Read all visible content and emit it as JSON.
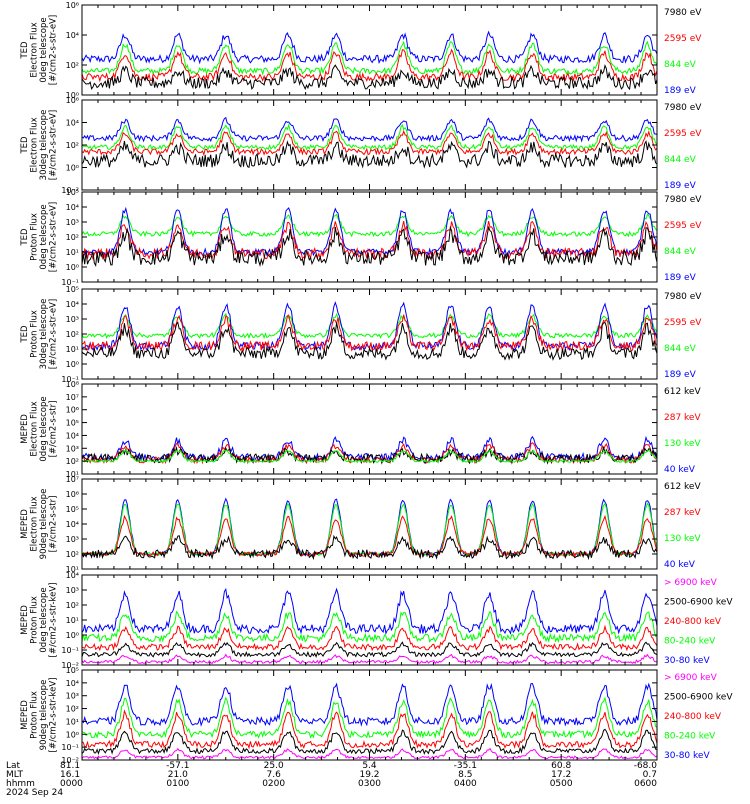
{
  "footer": {
    "row_labels": [
      "Lat",
      "MLT",
      "hhmm"
    ],
    "date": "2024 Sep 24",
    "ticks": [
      {
        "lat": "81.1",
        "mlt": "16.1",
        "time": "0000"
      },
      {
        "lat": "-57.1",
        "mlt": "21.0",
        "time": "0100"
      },
      {
        "lat": "25.0",
        "mlt": "7.6",
        "time": "0200"
      },
      {
        "lat": "5.4",
        "mlt": "19.2",
        "time": "0300"
      },
      {
        "lat": "-35.1",
        "mlt": "8.5",
        "time": "0400"
      },
      {
        "lat": "60.8",
        "mlt": "17.2",
        "time": "0500"
      },
      {
        "lat": "-68.0",
        "mlt": "0.7",
        "time": "0600"
      }
    ]
  },
  "colors": {
    "blue": "#0000ff",
    "red": "#ff0000",
    "green": "#00ff00",
    "black": "#000000",
    "magenta": "#ff00ff"
  },
  "chart_data": [
    {
      "type": "line",
      "ylabel": [
        "TED",
        "Electron Flux",
        "0deg telescope",
        "[#/cm2-s-str-eV]"
      ],
      "ylim_exp": [
        0,
        6
      ],
      "yticks": [
        "10⁰",
        "10²",
        "10⁴",
        "10⁶"
      ],
      "xlim_hours": [
        0,
        6
      ],
      "legend": [
        {
          "label": "7980 eV",
          "color": "#000000"
        },
        {
          "label": "2595 eV",
          "color": "#ff0000"
        },
        {
          "label": "844 eV",
          "color": "#00ff00"
        },
        {
          "label": "189 eV",
          "color": "#0000ff"
        }
      ],
      "series": [
        {
          "color": "#0000ff",
          "base": 2.4,
          "peak": 4.0,
          "noise": 0.25
        },
        {
          "color": "#00ff00",
          "base": 1.6,
          "peak": 3.4,
          "noise": 0.2
        },
        {
          "color": "#ff0000",
          "base": 1.2,
          "peak": 2.8,
          "noise": 0.25
        },
        {
          "color": "#000000",
          "base": 0.8,
          "peak": 1.6,
          "noise": 0.4
        }
      ]
    },
    {
      "type": "line",
      "ylabel": [
        "TED",
        "Electron Flux",
        "30deg telescope",
        "[#/cm2-s-str-eV]"
      ],
      "ylim_exp": [
        -2,
        6
      ],
      "yticks": [
        "10⁻²",
        "10⁰",
        "10²",
        "10⁴",
        "10⁶"
      ],
      "xlim_hours": [
        0,
        6
      ],
      "legend": [
        {
          "label": "7980 eV",
          "color": "#000000"
        },
        {
          "label": "2595 eV",
          "color": "#ff0000"
        },
        {
          "label": "844 eV",
          "color": "#00ff00"
        },
        {
          "label": "189 eV",
          "color": "#0000ff"
        }
      ],
      "series": [
        {
          "color": "#0000ff",
          "base": 2.6,
          "peak": 4.2,
          "noise": 0.25
        },
        {
          "color": "#00ff00",
          "base": 1.8,
          "peak": 3.6,
          "noise": 0.2
        },
        {
          "color": "#ff0000",
          "base": 1.4,
          "peak": 3.0,
          "noise": 0.25
        },
        {
          "color": "#000000",
          "base": 0.6,
          "peak": 1.8,
          "noise": 0.6
        }
      ]
    },
    {
      "type": "line",
      "ylabel": [
        "TED",
        "Proton Flux",
        "0deg telescope",
        "[#/cm2-s-str-eV]"
      ],
      "ylim_exp": [
        -1,
        5
      ],
      "yticks": [
        "10⁻¹",
        "10⁰",
        "10¹",
        "10²",
        "10³",
        "10⁴",
        "10⁵"
      ],
      "xlim_hours": [
        0,
        6
      ],
      "legend": [
        {
          "label": "7980 eV",
          "color": "#000000"
        },
        {
          "label": "2595 eV",
          "color": "#ff0000"
        },
        {
          "label": "844 eV",
          "color": "#00ff00"
        },
        {
          "label": "189 eV",
          "color": "#0000ff"
        }
      ],
      "series": [
        {
          "color": "#00ff00",
          "base": 2.2,
          "peak": 3.4,
          "noise": 0.15
        },
        {
          "color": "#0000ff",
          "base": 1.0,
          "peak": 3.8,
          "noise": 0.2
        },
        {
          "color": "#ff0000",
          "base": 0.9,
          "peak": 2.8,
          "noise": 0.35
        },
        {
          "color": "#000000",
          "base": 0.6,
          "peak": 2.2,
          "noise": 0.5
        }
      ]
    },
    {
      "type": "line",
      "ylabel": [
        "TED",
        "Proton Flux",
        "30deg telescope",
        "[#/cm2-s-str-eV]"
      ],
      "ylim_exp": [
        -1,
        5
      ],
      "yticks": [
        "10⁻¹",
        "10⁰",
        "10¹",
        "10²",
        "10³",
        "10⁴",
        "10⁵"
      ],
      "xlim_hours": [
        0,
        6
      ],
      "legend": [
        {
          "label": "7980 eV",
          "color": "#000000"
        },
        {
          "label": "2595 eV",
          "color": "#ff0000"
        },
        {
          "label": "844 eV",
          "color": "#00ff00"
        },
        {
          "label": "189 eV",
          "color": "#0000ff"
        }
      ],
      "series": [
        {
          "color": "#00ff00",
          "base": 1.9,
          "peak": 3.2,
          "noise": 0.15
        },
        {
          "color": "#0000ff",
          "base": 1.2,
          "peak": 3.9,
          "noise": 0.25
        },
        {
          "color": "#ff0000",
          "base": 1.2,
          "peak": 3.0,
          "noise": 0.3
        },
        {
          "color": "#000000",
          "base": 0.7,
          "peak": 2.4,
          "noise": 0.4
        }
      ]
    },
    {
      "type": "line",
      "ylabel": [
        "MEPED",
        "Electron Flux",
        "0deg telescope",
        "[#/cm2-s-str]"
      ],
      "ylim_exp": [
        1,
        8
      ],
      "yticks": [
        "10¹",
        "10²",
        "10³",
        "10⁴",
        "10⁵",
        "10⁶",
        "10⁷",
        "10⁸"
      ],
      "xlim_hours": [
        0,
        6
      ],
      "legend": [
        {
          "label": "612 keV",
          "color": "#000000"
        },
        {
          "label": "287 keV",
          "color": "#ff0000"
        },
        {
          "label": "130 keV",
          "color": "#00ff00"
        },
        {
          "label": "40 keV",
          "color": "#0000ff"
        }
      ],
      "series": [
        {
          "color": "#0000ff",
          "base": 2.3,
          "peak": 3.6,
          "noise": 0.3
        },
        {
          "color": "#ff0000",
          "base": 2.1,
          "peak": 3.2,
          "noise": 0.25
        },
        {
          "color": "#000000",
          "base": 2.2,
          "peak": 2.8,
          "noise": 0.35
        },
        {
          "color": "#00ff00",
          "base": 2.0,
          "peak": 2.8,
          "noise": 0.1
        }
      ]
    },
    {
      "type": "line",
      "ylabel": [
        "MEPED",
        "Electron Flux",
        "90deg telescope",
        "[#/cm2-s-str]"
      ],
      "ylim_exp": [
        1,
        7
      ],
      "yticks": [
        "10¹",
        "10²",
        "10³",
        "10⁴",
        "10⁵",
        "10⁶",
        "10⁷"
      ],
      "xlim_hours": [
        0,
        6
      ],
      "legend": [
        {
          "label": "612 keV",
          "color": "#000000"
        },
        {
          "label": "287 keV",
          "color": "#ff0000"
        },
        {
          "label": "130 keV",
          "color": "#00ff00"
        },
        {
          "label": "40 keV",
          "color": "#0000ff"
        }
      ],
      "series": [
        {
          "color": "#0000ff",
          "base": 2.0,
          "peak": 5.6,
          "noise": 0.1
        },
        {
          "color": "#00ff00",
          "base": 2.0,
          "peak": 5.3,
          "noise": 0.1
        },
        {
          "color": "#ff0000",
          "base": 2.0,
          "peak": 4.4,
          "noise": 0.15
        },
        {
          "color": "#000000",
          "base": 2.0,
          "peak": 3.0,
          "noise": 0.3
        }
      ]
    },
    {
      "type": "line",
      "ylabel": [
        "MEPED",
        "Proton Flux",
        "0deg telescope",
        "[#/cm2-s-str-keV]"
      ],
      "ylim_exp": [
        -2,
        4
      ],
      "yticks": [
        "10⁻²",
        "10⁻¹",
        "10⁰",
        "10¹",
        "10²",
        "10³",
        "10⁴"
      ],
      "xlim_hours": [
        0,
        6
      ],
      "legend": [
        {
          "label": "> 6900 keV",
          "color": "#ff00ff"
        },
        {
          "label": "2500-6900 keV",
          "color": "#000000"
        },
        {
          "label": "240-800 keV",
          "color": "#ff0000"
        },
        {
          "label": "80-240 keV",
          "color": "#00ff00"
        },
        {
          "label": "30-80 keV",
          "color": "#0000ff"
        }
      ],
      "series": [
        {
          "color": "#0000ff",
          "base": 0.4,
          "peak": 2.8,
          "noise": 0.3
        },
        {
          "color": "#00ff00",
          "base": -0.2,
          "peak": 1.4,
          "noise": 0.25
        },
        {
          "color": "#ff0000",
          "base": -0.8,
          "peak": 0.4,
          "noise": 0.2
        },
        {
          "color": "#000000",
          "base": -1.3,
          "peak": -0.6,
          "noise": 0.15
        },
        {
          "color": "#ff00ff",
          "base": -1.8,
          "peak": -1.4,
          "noise": 0.1
        }
      ]
    },
    {
      "type": "line",
      "ylabel": [
        "MEPED",
        "Proton Flux",
        "90deg telescope",
        "[#/cm2-s-str-keV]"
      ],
      "ylim_exp": [
        -2,
        5
      ],
      "yticks": [
        "10⁻²",
        "10⁻¹",
        "10⁰",
        "10¹",
        "10²",
        "10³",
        "10⁴",
        "10⁵"
      ],
      "xlim_hours": [
        0,
        6
      ],
      "legend": [
        {
          "label": "> 6900 keV",
          "color": "#ff00ff"
        },
        {
          "label": "2500-6900 keV",
          "color": "#000000"
        },
        {
          "label": "240-800 keV",
          "color": "#ff0000"
        },
        {
          "label": "80-240 keV",
          "color": "#00ff00"
        },
        {
          "label": "30-80 keV",
          "color": "#0000ff"
        }
      ],
      "series": [
        {
          "color": "#0000ff",
          "base": 1.0,
          "peak": 3.8,
          "noise": 0.3
        },
        {
          "color": "#00ff00",
          "base": 0.0,
          "peak": 2.6,
          "noise": 0.25
        },
        {
          "color": "#ff0000",
          "base": -0.8,
          "peak": 1.6,
          "noise": 0.25
        },
        {
          "color": "#000000",
          "base": -1.3,
          "peak": 0.2,
          "noise": 0.2
        },
        {
          "color": "#ff00ff",
          "base": -1.8,
          "peak": -1.2,
          "noise": 0.1
        }
      ]
    }
  ]
}
